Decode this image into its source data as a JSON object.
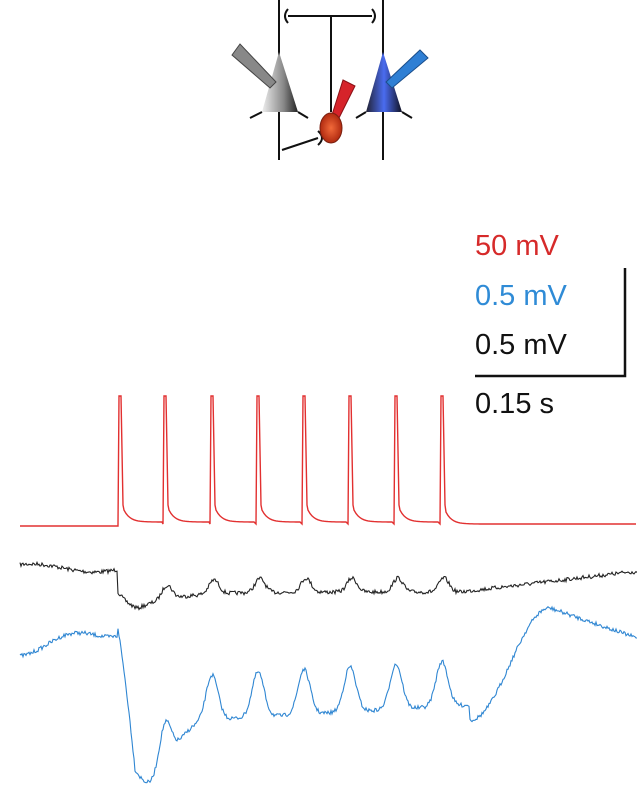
{
  "scale_bar": {
    "voltage": [
      "50 mV",
      "0.5 mV",
      "0.5 mV"
    ],
    "time": "0.15 s"
  }
}
